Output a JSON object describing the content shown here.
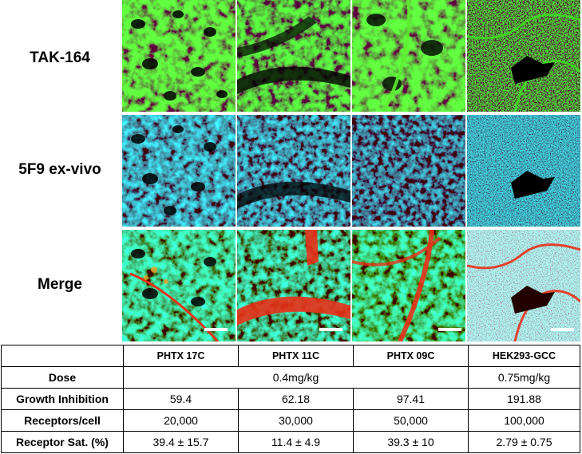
{
  "rows": [
    {
      "label": "TAK-164"
    },
    {
      "label": "5F9 ex-vivo"
    },
    {
      "label": "Merge"
    }
  ],
  "colors": {
    "green": "#2ecc1a",
    "cyan": "#40c8d8",
    "red": "#e83018",
    "scale_bar": "#ffffff"
  },
  "table": {
    "columns": [
      "",
      "PHTX 17C",
      "PHTX 11C",
      "PHTX 09C",
      "HEK293-GCC"
    ],
    "dose": {
      "label": "Dose",
      "shared": "0.4mg/kg",
      "hek": "0.75mg/kg"
    },
    "growth": {
      "label": "Growth Inhibition",
      "values": [
        "59.4",
        "62.18",
        "97.41",
        "191.88"
      ]
    },
    "receptors": {
      "label": "Receptors/cell",
      "values": [
        "20,000",
        "30,000",
        "50,000",
        "100,000"
      ]
    },
    "saturation": {
      "label": "Receptor Sat. (%)",
      "values": [
        "39.4 ± 15.7",
        "11.4 ± 4.9",
        "39.3 ± 10",
        "2.79 ± 0.75"
      ]
    }
  }
}
